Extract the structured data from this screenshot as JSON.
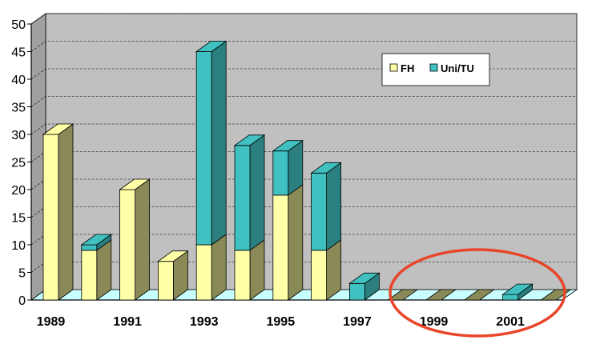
{
  "chart_data": {
    "type": "bar",
    "stacked": true,
    "three_d": true,
    "x": [
      1989,
      1990,
      1991,
      1992,
      1993,
      1994,
      1995,
      1996,
      1997,
      1998,
      1999,
      2000,
      2001,
      2002
    ],
    "x_tick_labels": [
      "1989",
      "1991",
      "1993",
      "1995",
      "1997",
      "1999",
      "2001"
    ],
    "series": [
      {
        "name": "FH",
        "color": "#ffffa8",
        "side_color": "#8a8a58",
        "values": [
          30,
          9,
          20,
          7,
          10,
          9,
          19,
          9,
          0,
          0,
          0,
          0,
          0,
          0
        ]
      },
      {
        "name": "Uni/TU",
        "color": "#40c0c0",
        "side_color": "#2c7f7f",
        "values": [
          0,
          1,
          0,
          0,
          35,
          19,
          8,
          14,
          3,
          0,
          0,
          0,
          1,
          0
        ]
      }
    ],
    "ylim": [
      0,
      50
    ],
    "y_ticks": [
      0,
      5,
      10,
      15,
      20,
      25,
      30,
      35,
      40,
      45,
      50
    ],
    "grid": true,
    "legend_position": "top-right",
    "wall_color": "#c0c0c0",
    "floor_color": "#c8ffff",
    "annotation": {
      "shape": "ellipse",
      "color": "#e8452a",
      "around": "1998–2002"
    }
  }
}
